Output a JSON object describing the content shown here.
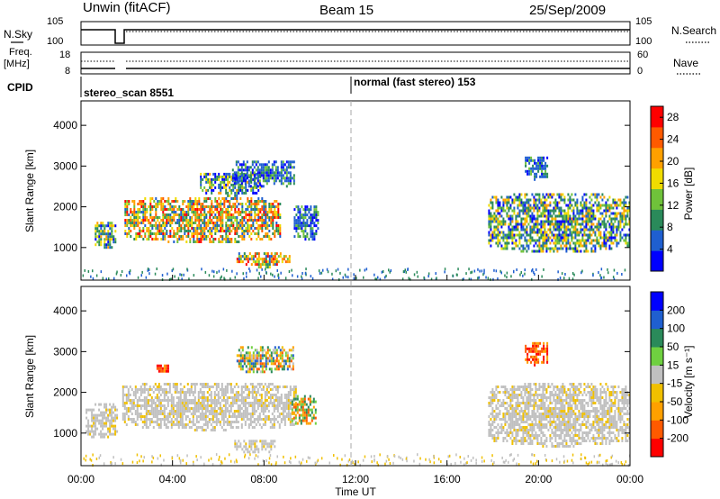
{
  "header": {
    "station": "Unwin (fitACF)",
    "beam": "Beam 15",
    "date": "25/Sep/2009"
  },
  "side_labels": {
    "nsky": "N.Sky",
    "nsearch": "N.Search",
    "freq": "Freq.",
    "freq_unit": "[MHz]",
    "nave": "Nave",
    "cpid": "CPID"
  },
  "noise_axis": {
    "left_ticks": [
      "10^5",
      "10^0"
    ],
    "right_ticks": [
      "10^5",
      "10^0"
    ]
  },
  "freq_axis": {
    "left_ticks": [
      "18",
      "8"
    ],
    "right_ticks": [
      "60",
      "0"
    ]
  },
  "cpid_segments": [
    {
      "label": "stereo_scan 8551",
      "start_hour": 0
    },
    {
      "label": "normal (fast stereo) 153",
      "start_hour": 12
    }
  ],
  "chart_data": [
    {
      "type": "heatmap",
      "panel": "power",
      "ylabel": "Slant Range [km]",
      "ylim": [
        200,
        4600
      ],
      "yticks": [
        "1000",
        "2000",
        "3000",
        "4000"
      ],
      "xlim_hours": [
        0,
        24
      ],
      "colorbar": {
        "label": "Power [dB]",
        "ticks": [
          "4",
          "8",
          "12",
          "16",
          "20",
          "24",
          "28"
        ],
        "range": [
          0,
          30
        ],
        "colors": [
          "#0000ff",
          "#1f5fd0",
          "#2a8a5a",
          "#6fc23a",
          "#f0dc00",
          "#ffa000",
          "#ff5a00",
          "#ff0000"
        ]
      },
      "echo_regions": [
        {
          "t0": 0.6,
          "t1": 1.5,
          "r0": 1000,
          "r1": 1700,
          "level": "medium"
        },
        {
          "t0": 1.9,
          "t1": 8.7,
          "r0": 1150,
          "r1": 2300,
          "level": "high"
        },
        {
          "t0": 5.2,
          "t1": 7.8,
          "r0": 2300,
          "r1": 2900,
          "level": "medium"
        },
        {
          "t0": 6.6,
          "t1": 9.3,
          "r0": 2500,
          "r1": 3200,
          "level": "low"
        },
        {
          "t0": 6.8,
          "t1": 9.1,
          "r0": 550,
          "r1": 950,
          "level": "high"
        },
        {
          "t0": 9.3,
          "t1": 10.4,
          "r0": 1200,
          "r1": 2100,
          "level": "low"
        },
        {
          "t0": 17.8,
          "t1": 24.0,
          "r0": 900,
          "r1": 2400,
          "level": "medium"
        },
        {
          "t0": 19.4,
          "t1": 20.4,
          "r0": 2700,
          "r1": 3300,
          "level": "low"
        }
      ]
    },
    {
      "type": "heatmap",
      "panel": "velocity",
      "ylabel": "Slant Range [km]",
      "ylim": [
        200,
        4600
      ],
      "yticks": [
        "1000",
        "2000",
        "3000",
        "4000"
      ],
      "xlim_hours": [
        0,
        24
      ],
      "xticks": [
        "00:00",
        "04:00",
        "08:00",
        "12:00",
        "16:00",
        "20:00",
        "00:00"
      ],
      "xlabel": "Time UT",
      "colorbar": {
        "label": "Velocity [m s⁻¹]",
        "ticks": [
          "200",
          "100",
          "50",
          "15",
          "-15",
          "-50",
          "-100",
          "-200"
        ],
        "range": [
          -250,
          250
        ],
        "colors": [
          "#ff0000",
          "#ff5a00",
          "#ffa000",
          "#f0c000",
          "#c0c0c0",
          "#6fd040",
          "#2a8a5a",
          "#1f5fd0",
          "#0000ff"
        ]
      },
      "echo_regions": [
        {
          "t0": 0.2,
          "t1": 1.6,
          "r0": 900,
          "r1": 1800,
          "level": "ground"
        },
        {
          "t0": 1.8,
          "t1": 9.4,
          "r0": 1100,
          "r1": 2300,
          "level": "ground"
        },
        {
          "t0": 6.8,
          "t1": 9.3,
          "r0": 2500,
          "r1": 3200,
          "level": "mixed"
        },
        {
          "t0": 6.7,
          "t1": 8.5,
          "r0": 550,
          "r1": 900,
          "level": "ground"
        },
        {
          "t0": 3.3,
          "t1": 3.8,
          "r0": 2500,
          "r1": 2750,
          "level": "red"
        },
        {
          "t0": 9.2,
          "t1": 10.3,
          "r0": 1200,
          "r1": 2000,
          "level": "green"
        },
        {
          "t0": 17.8,
          "t1": 24.0,
          "r0": 700,
          "r1": 2300,
          "level": "ground"
        },
        {
          "t0": 19.4,
          "t1": 20.4,
          "r0": 2700,
          "r1": 3300,
          "level": "red"
        }
      ]
    }
  ]
}
